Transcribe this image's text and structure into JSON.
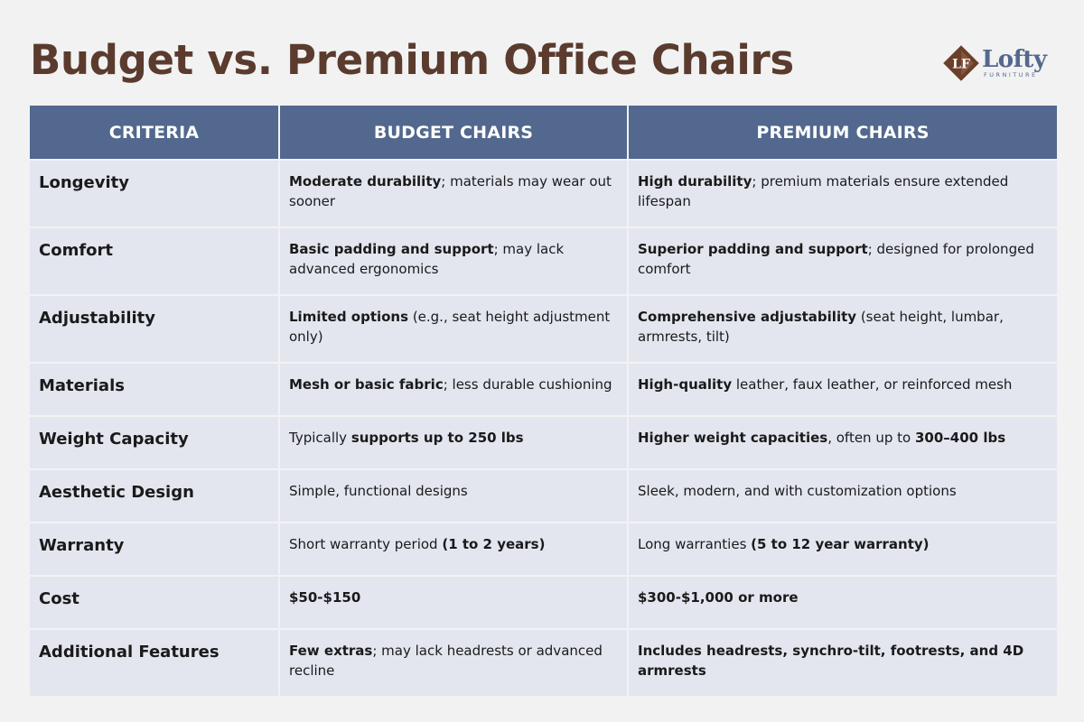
{
  "title": "Budget vs. Premium Office Chairs",
  "brand": {
    "name": "Lofty",
    "subtitle": "FURNITURE",
    "monogram": "LF",
    "colors": {
      "brown": "#6b3f2a",
      "blue": "#54688e"
    }
  },
  "colors": {
    "title": "#5a3b2e",
    "header_bg": "#52688e",
    "cell_bg": "#e3e6ef",
    "background": "#f2f2f2"
  },
  "table": {
    "headers": [
      "CRITERIA",
      "BUDGET CHAIRS",
      "PREMIUM CHAIRS"
    ],
    "rows": [
      {
        "criteria": "Longevity",
        "budget": [
          {
            "text": "Moderate durability",
            "bold": true
          },
          {
            "text": "; materials may wear out sooner"
          }
        ],
        "premium": [
          {
            "text": "High durability",
            "bold": true
          },
          {
            "text": "; premium materials ensure extended lifespan"
          }
        ]
      },
      {
        "criteria": "Comfort",
        "budget": [
          {
            "text": "Basic padding and support",
            "bold": true
          },
          {
            "text": "; may lack advanced ergonomics"
          }
        ],
        "premium": [
          {
            "text": "Superior padding and support",
            "bold": true
          },
          {
            "text": "; designed for prolonged comfort"
          }
        ]
      },
      {
        "criteria": "Adjustability",
        "budget": [
          {
            "text": "Limited options",
            "bold": true
          },
          {
            "text": " (e.g., seat height adjustment only)"
          }
        ],
        "premium": [
          {
            "text": "Comprehensive adjustability",
            "bold": true
          },
          {
            "text": " (seat height, lumbar, armrests, tilt)"
          }
        ]
      },
      {
        "criteria": "Materials",
        "budget": [
          {
            "text": "Mesh or basic fabric",
            "bold": true
          },
          {
            "text": "; less durable cushioning"
          }
        ],
        "premium": [
          {
            "text": "High-quality",
            "bold": true
          },
          {
            "text": " leather, faux leather, or reinforced mesh"
          }
        ]
      },
      {
        "criteria": "Weight Capacity",
        "budget": [
          {
            "text": "Typically "
          },
          {
            "text": "supports up to 250 lbs",
            "bold": true
          }
        ],
        "premium": [
          {
            "text": "Higher weight capacities",
            "bold": true
          },
          {
            "text": ", often up to "
          },
          {
            "text": "300–400 lbs",
            "bold": true
          }
        ]
      },
      {
        "criteria": "Aesthetic Design",
        "budget": [
          {
            "text": "Simple, functional designs"
          }
        ],
        "premium": [
          {
            "text": "Sleek, modern, and with customization options"
          }
        ]
      },
      {
        "criteria": "Warranty",
        "budget": [
          {
            "text": "Short warranty period "
          },
          {
            "text": "(1 to 2 years)",
            "bold": true
          }
        ],
        "premium": [
          {
            "text": "Long warranties "
          },
          {
            "text": "(5 to 12 year warranty)",
            "bold": true
          }
        ]
      },
      {
        "criteria": "Cost",
        "budget": [
          {
            "text": "$50-$150",
            "bold": true
          }
        ],
        "premium": [
          {
            "text": "$300-$1,000 or more",
            "bold": true
          }
        ]
      },
      {
        "criteria": "Additional Features",
        "budget": [
          {
            "text": "Few extras",
            "bold": true
          },
          {
            "text": "; may lack headrests or advanced recline"
          }
        ],
        "premium": [
          {
            "text": "Includes headrests, synchro-tilt, footrests, and 4D armrests",
            "bold": true
          }
        ]
      }
    ]
  }
}
